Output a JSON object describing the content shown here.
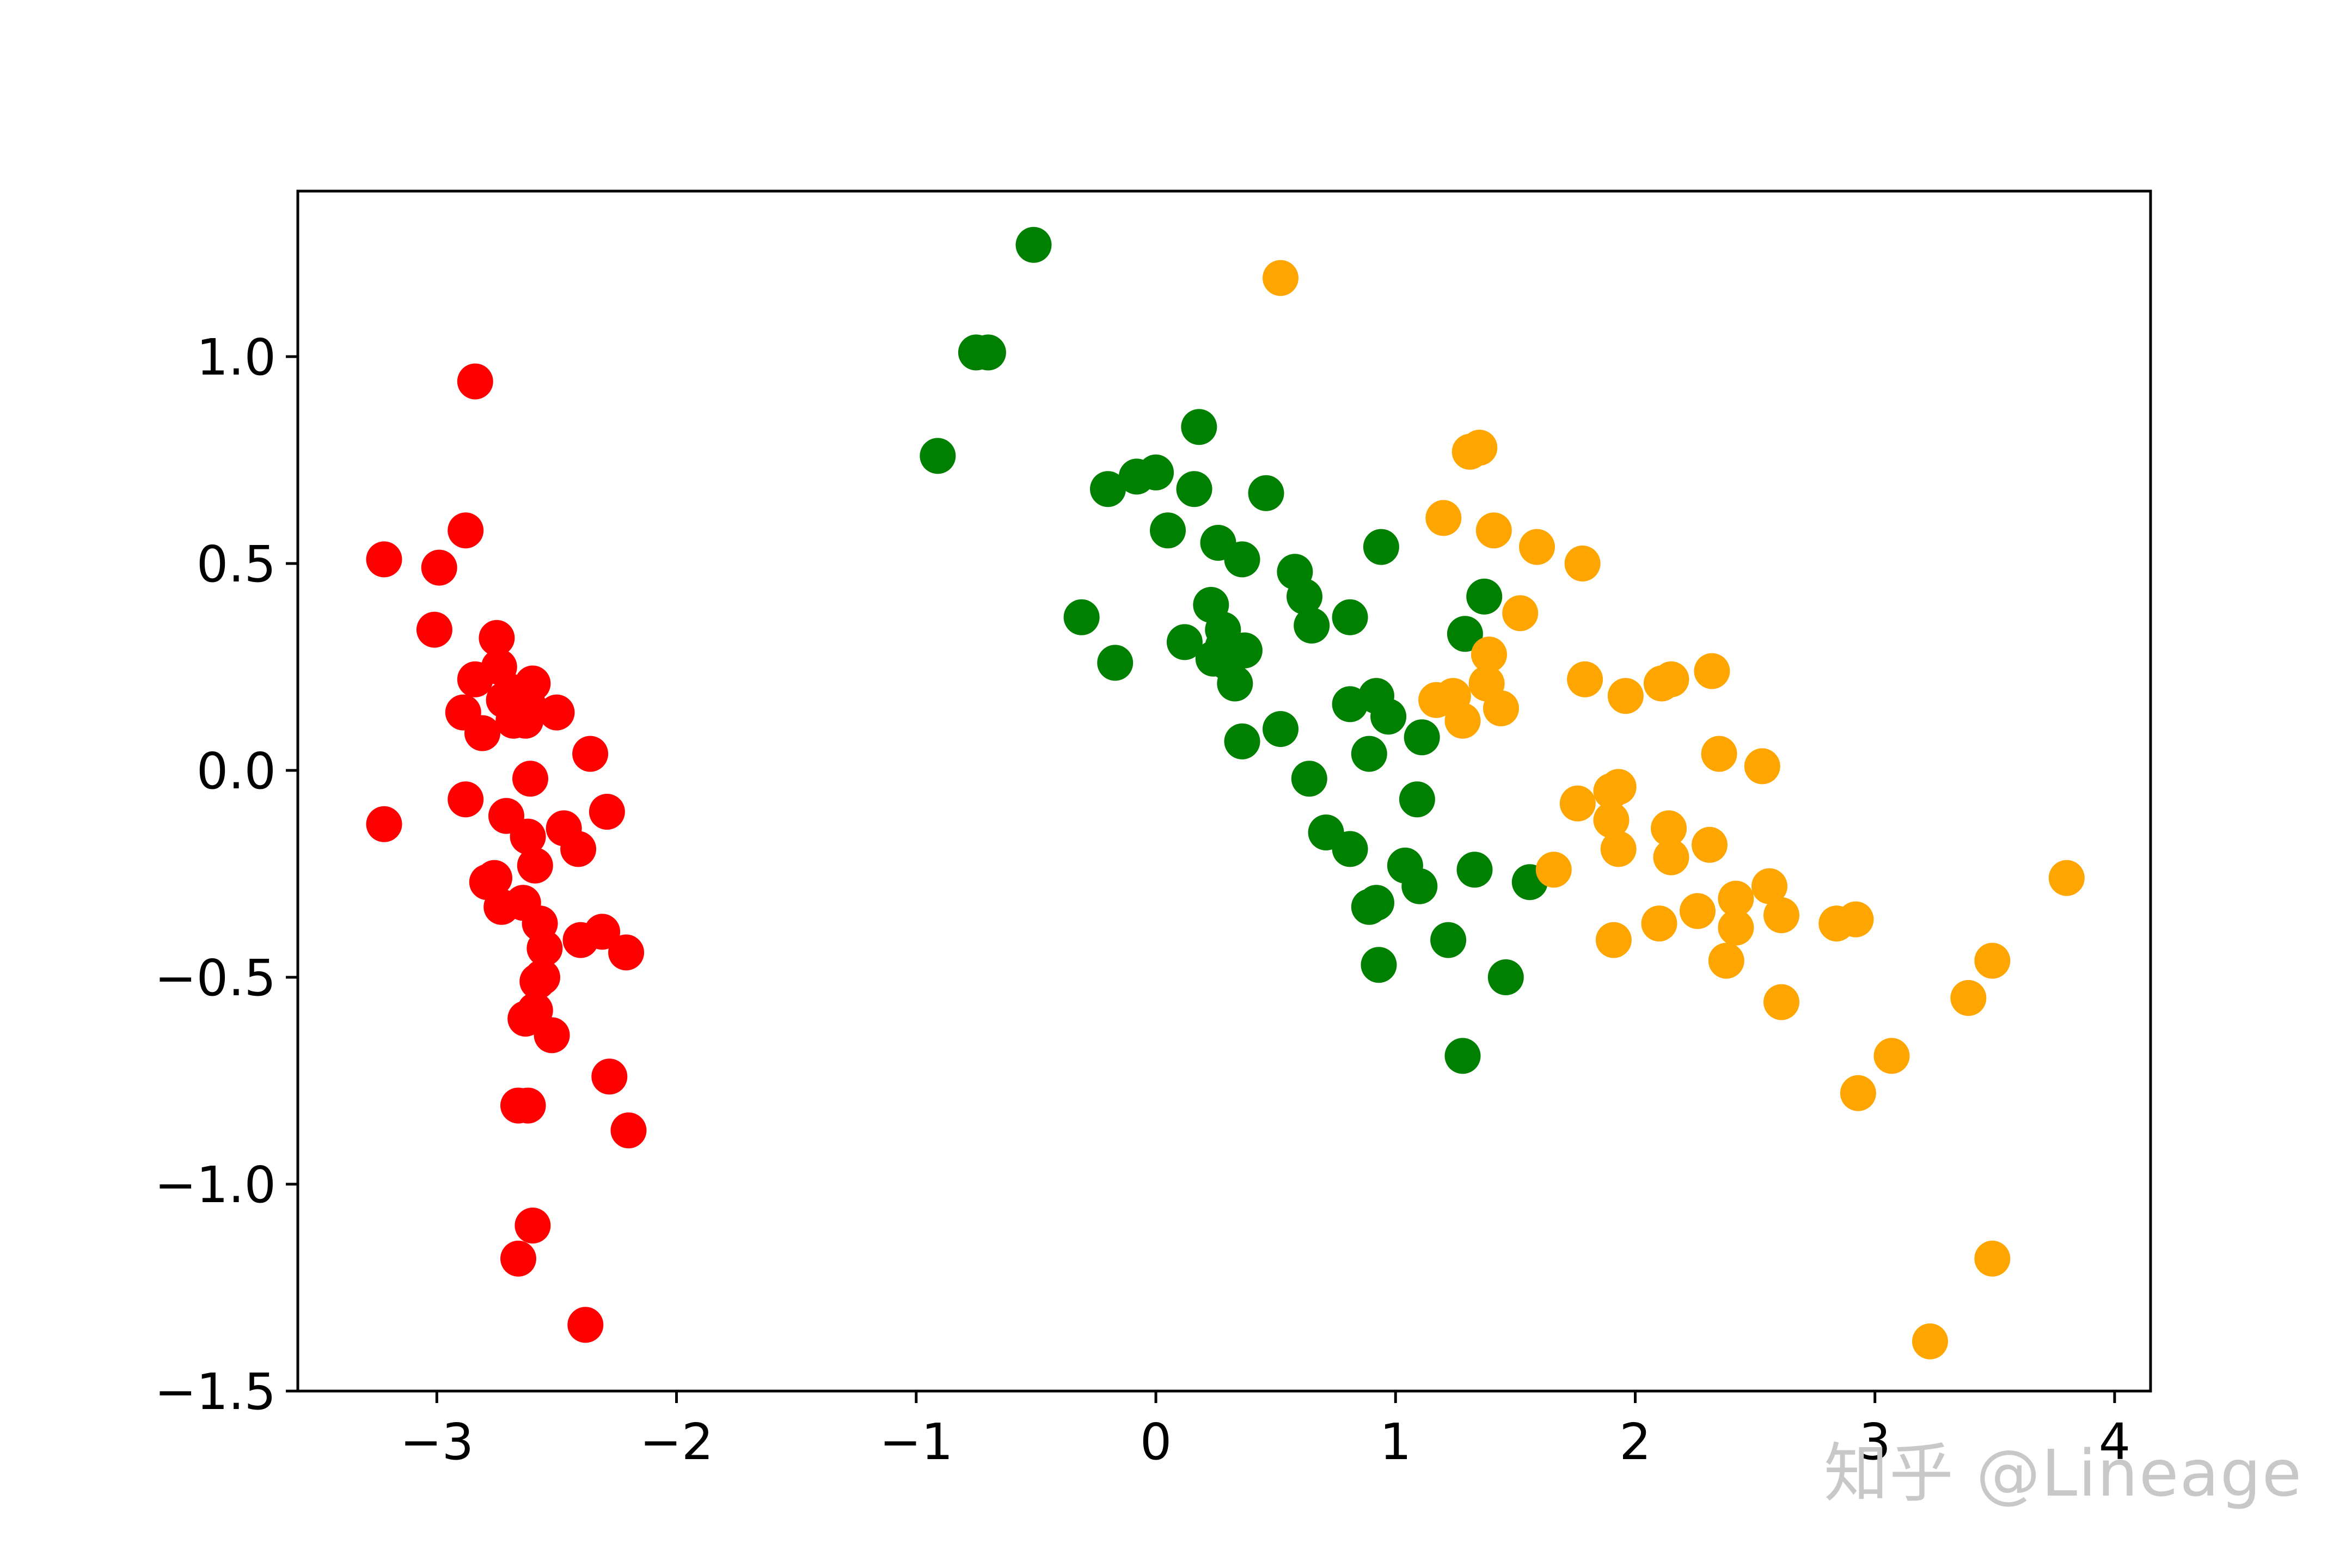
{
  "chart_data": {
    "type": "scatter",
    "title": "",
    "xlabel": "",
    "ylabel": "",
    "xlim": [
      -3.58,
      4.15
    ],
    "ylim": [
      -1.5,
      1.4
    ],
    "grid": false,
    "legend": "none",
    "x_ticks": [
      -3,
      -2,
      -1,
      0,
      1,
      2,
      3,
      4
    ],
    "x_tick_labels": [
      "−3",
      "−2",
      "−1",
      "0",
      "1",
      "2",
      "3",
      "4"
    ],
    "y_ticks": [
      1.0,
      0.5,
      0.0,
      -0.5,
      -1.0,
      -1.5
    ],
    "y_tick_labels": [
      "1.0",
      "0.5",
      "0.0",
      "−0.5",
      "−1.0",
      "−1.5"
    ],
    "series": [
      {
        "color": "#ff0000",
        "points": [
          [
            -2.84,
            0.94
          ],
          [
            -3.22,
            0.51
          ],
          [
            -2.88,
            0.58
          ],
          [
            -2.99,
            0.49
          ],
          [
            -3.01,
            0.34
          ],
          [
            -2.75,
            0.32
          ],
          [
            -2.84,
            0.22
          ],
          [
            -2.74,
            0.25
          ],
          [
            -2.6,
            0.21
          ],
          [
            -2.69,
            0.19
          ],
          [
            -2.72,
            0.17
          ],
          [
            -2.62,
            0.16
          ],
          [
            -2.89,
            0.14
          ],
          [
            -2.5,
            0.14
          ],
          [
            -2.68,
            0.12
          ],
          [
            -2.63,
            0.12
          ],
          [
            -2.81,
            0.09
          ],
          [
            -2.36,
            0.04
          ],
          [
            -2.61,
            -0.02
          ],
          [
            -2.88,
            -0.07
          ],
          [
            -2.71,
            -0.11
          ],
          [
            -2.29,
            -0.1
          ],
          [
            -2.47,
            -0.14
          ],
          [
            -2.62,
            -0.16
          ],
          [
            -2.41,
            -0.19
          ],
          [
            -3.22,
            -0.13
          ],
          [
            -2.59,
            -0.23
          ],
          [
            -2.79,
            -0.27
          ],
          [
            -2.76,
            -0.26
          ],
          [
            -2.73,
            -0.33
          ],
          [
            -2.64,
            -0.32
          ],
          [
            -2.57,
            -0.37
          ],
          [
            -2.4,
            -0.41
          ],
          [
            -2.31,
            -0.39
          ],
          [
            -2.21,
            -0.44
          ],
          [
            -2.55,
            -0.43
          ],
          [
            -2.58,
            -0.51
          ],
          [
            -2.56,
            -0.5
          ],
          [
            -2.59,
            -0.58
          ],
          [
            -2.63,
            -0.6
          ],
          [
            -2.52,
            -0.64
          ],
          [
            -2.28,
            -0.74
          ],
          [
            -2.2,
            -0.87
          ],
          [
            -2.66,
            -0.81
          ],
          [
            -2.62,
            -0.81
          ],
          [
            -2.6,
            -1.1
          ],
          [
            -2.66,
            -1.18
          ],
          [
            -2.38,
            -1.34
          ]
        ]
      },
      {
        "color": "#008000",
        "points": [
          [
            -0.51,
            1.27
          ],
          [
            -0.75,
            1.01
          ],
          [
            -0.7,
            1.01
          ],
          [
            -0.91,
            0.76
          ],
          [
            -0.2,
            0.68
          ],
          [
            -0.08,
            0.71
          ],
          [
            0.0,
            0.72
          ],
          [
            0.18,
            0.83
          ],
          [
            0.16,
            0.68
          ],
          [
            0.46,
            0.67
          ],
          [
            0.05,
            0.58
          ],
          [
            0.26,
            0.55
          ],
          [
            0.36,
            0.51
          ],
          [
            0.94,
            0.54
          ],
          [
            0.58,
            0.48
          ],
          [
            0.62,
            0.42
          ],
          [
            0.23,
            0.4
          ],
          [
            0.81,
            0.37
          ],
          [
            0.65,
            0.35
          ],
          [
            -0.31,
            0.37
          ],
          [
            0.28,
            0.34
          ],
          [
            0.12,
            0.31
          ],
          [
            0.28,
            0.3
          ],
          [
            0.37,
            0.29
          ],
          [
            0.24,
            0.27
          ],
          [
            0.3,
            0.26
          ],
          [
            -0.17,
            0.26
          ],
          [
            0.33,
            0.21
          ],
          [
            0.92,
            0.18
          ],
          [
            0.81,
            0.16
          ],
          [
            0.97,
            0.13
          ],
          [
            1.11,
            0.08
          ],
          [
            0.52,
            0.1
          ],
          [
            0.36,
            0.07
          ],
          [
            0.89,
            0.04
          ],
          [
            1.37,
            0.42
          ],
          [
            1.29,
            0.33
          ],
          [
            0.64,
            -0.02
          ],
          [
            1.09,
            -0.07
          ],
          [
            0.71,
            -0.15
          ],
          [
            0.81,
            -0.19
          ],
          [
            1.04,
            -0.23
          ],
          [
            1.1,
            -0.28
          ],
          [
            1.33,
            -0.24
          ],
          [
            1.56,
            -0.27
          ],
          [
            0.89,
            -0.33
          ],
          [
            0.92,
            -0.32
          ],
          [
            1.22,
            -0.41
          ],
          [
            0.93,
            -0.47
          ],
          [
            1.46,
            -0.5
          ],
          [
            1.28,
            -0.69
          ]
        ]
      },
      {
        "color": "#ffa500",
        "points": [
          [
            0.52,
            1.19
          ],
          [
            1.31,
            0.77
          ],
          [
            1.35,
            0.78
          ],
          [
            1.2,
            0.61
          ],
          [
            1.41,
            0.58
          ],
          [
            1.59,
            0.54
          ],
          [
            1.78,
            0.5
          ],
          [
            1.52,
            0.38
          ],
          [
            1.39,
            0.28
          ],
          [
            1.38,
            0.21
          ],
          [
            1.17,
            0.17
          ],
          [
            1.24,
            0.18
          ],
          [
            1.28,
            0.12
          ],
          [
            1.44,
            0.15
          ],
          [
            1.79,
            0.22
          ],
          [
            1.96,
            0.18
          ],
          [
            2.11,
            0.21
          ],
          [
            2.15,
            0.22
          ],
          [
            2.32,
            0.24
          ],
          [
            2.35,
            0.04
          ],
          [
            2.53,
            0.01
          ],
          [
            1.76,
            -0.08
          ],
          [
            1.9,
            -0.05
          ],
          [
            1.93,
            -0.04
          ],
          [
            1.9,
            -0.12
          ],
          [
            1.93,
            -0.19
          ],
          [
            2.14,
            -0.14
          ],
          [
            2.15,
            -0.21
          ],
          [
            2.31,
            -0.18
          ],
          [
            1.66,
            -0.24
          ],
          [
            2.56,
            -0.28
          ],
          [
            2.42,
            -0.31
          ],
          [
            2.42,
            -0.38
          ],
          [
            2.26,
            -0.34
          ],
          [
            2.61,
            -0.35
          ],
          [
            2.1,
            -0.37
          ],
          [
            2.84,
            -0.37
          ],
          [
            2.92,
            -0.36
          ],
          [
            1.91,
            -0.41
          ],
          [
            2.38,
            -0.46
          ],
          [
            3.49,
            -0.46
          ],
          [
            3.39,
            -0.55
          ],
          [
            2.61,
            -0.56
          ],
          [
            3.8,
            -0.26
          ],
          [
            3.07,
            -0.69
          ],
          [
            2.93,
            -0.78
          ],
          [
            3.49,
            -1.18
          ],
          [
            3.23,
            -1.38
          ]
        ]
      }
    ]
  },
  "watermark": {
    "text": "知乎 @Lineage"
  }
}
